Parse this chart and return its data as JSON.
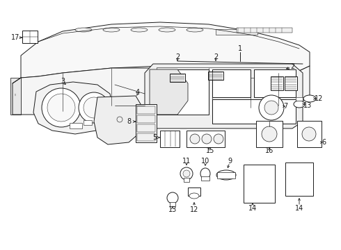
{
  "bg_color": "#ffffff",
  "line_color": "#1a1a1a",
  "lw": 0.7,
  "figsize": [
    4.9,
    3.6
  ],
  "dpi": 100
}
